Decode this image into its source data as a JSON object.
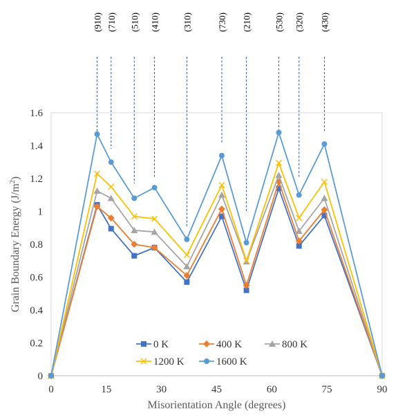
{
  "chart_data": {
    "type": "line",
    "xlabel": "Misorientation Angle (degrees)",
    "ylabel": "Grain Boundary Energy (J/m",
    "ylabel_sup": "2",
    "ylabel_end": ")",
    "xlim": [
      0,
      90
    ],
    "ylim": [
      0,
      1.6
    ],
    "x_ticks": [
      0,
      15,
      30,
      45,
      60,
      75,
      90
    ],
    "x_tick_labels": [
      "0",
      "15",
      "30",
      "45",
      "60",
      "75",
      "90"
    ],
    "y_ticks": [
      0,
      0.2,
      0.4,
      0.6,
      0.8,
      1.0,
      1.2,
      1.4,
      1.6
    ],
    "y_tick_labels": [
      "0",
      "0.2",
      "0.4",
      "0.6",
      "0.8",
      "1",
      "1.2",
      "1.4",
      "1.6"
    ],
    "grid": false,
    "legend_position": "bottom-center",
    "x": [
      0,
      12.5,
      16.3,
      22.6,
      28.1,
      36.9,
      46.4,
      53.1,
      61.9,
      67.4,
      74.3,
      90
    ],
    "series": [
      {
        "name": "0 K",
        "color": "#4472C4",
        "marker": "square",
        "values": [
          0,
          1.04,
          0.895,
          0.73,
          0.78,
          0.57,
          0.97,
          0.52,
          1.14,
          0.79,
          0.975,
          0
        ]
      },
      {
        "name": "400 K",
        "color": "#ED7D31",
        "marker": "diamond",
        "values": [
          0,
          1.03,
          0.96,
          0.8,
          0.78,
          0.61,
          1.015,
          0.55,
          1.18,
          0.82,
          1.01,
          0
        ]
      },
      {
        "name": "800 K",
        "color": "#A5A5A5",
        "marker": "triangle",
        "values": [
          0,
          1.125,
          1.08,
          0.885,
          0.875,
          0.665,
          1.1,
          0.695,
          1.22,
          0.88,
          1.08,
          0
        ]
      },
      {
        "name": "1200 K",
        "color": "#FFC000",
        "marker": "x",
        "values": [
          0,
          1.23,
          1.15,
          0.97,
          0.955,
          0.735,
          1.16,
          0.7,
          1.295,
          0.96,
          1.18,
          0
        ]
      },
      {
        "name": "1600 K",
        "color": "#5B9BD5",
        "marker": "circle",
        "values": [
          0,
          1.47,
          1.3,
          1.08,
          1.145,
          0.83,
          1.34,
          0.81,
          1.48,
          1.1,
          1.41,
          0
        ]
      }
    ],
    "annotations": {
      "labels": [
        "(910)",
        "(710)",
        "(510)",
        "(410)",
        "(310)",
        "(730)",
        "(210)",
        "(530)",
        "(320)",
        "(430)"
      ],
      "x": [
        12.5,
        16.3,
        22.6,
        28.1,
        36.9,
        46.4,
        53.1,
        61.9,
        67.4,
        74.3
      ],
      "line_end_y": [
        1.47,
        1.38,
        1.17,
        1.21,
        0.9,
        1.42,
        1.0,
        1.48,
        1.2,
        1.48
      ],
      "line_color": "#2F5597"
    }
  }
}
